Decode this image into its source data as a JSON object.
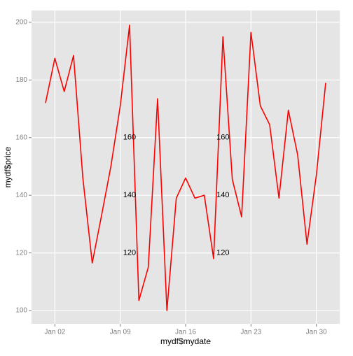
{
  "chart_data": {
    "type": "line",
    "x_label": "mydf$mydate",
    "y_label": "mydf$price",
    "x": [
      "Jan 01",
      "Jan 02",
      "Jan 03",
      "Jan 04",
      "Jan 05",
      "Jan 06",
      "Jan 07",
      "Jan 08",
      "Jan 09",
      "Jan 10",
      "Jan 11",
      "Jan 12",
      "Jan 13",
      "Jan 14",
      "Jan 15",
      "Jan 16",
      "Jan 17",
      "Jan 18",
      "Jan 19",
      "Jan 20",
      "Jan 21",
      "Jan 22",
      "Jan 23",
      "Jan 24",
      "Jan 25",
      "Jan 26",
      "Jan 27",
      "Jan 28",
      "Jan 29",
      "Jan 30",
      "Jan 31"
    ],
    "series": [
      {
        "color": "#ff0000",
        "values": [
          172,
          187.5,
          176,
          188.5,
          146,
          116.5,
          133,
          150,
          171,
          199,
          103.5,
          115,
          173.5,
          100,
          139,
          146,
          139,
          140,
          118,
          195,
          145.5,
          132.5,
          196.5,
          171,
          164.5,
          139,
          169.5,
          154,
          123,
          147,
          179
        ]
      }
    ],
    "xticks": [
      "Jan 02",
      "Jan 09",
      "Jan 16",
      "Jan 23",
      "Jan 30"
    ],
    "ylim": [
      95.4,
      204.1
    ],
    "yticks": [
      100,
      120,
      140,
      160,
      180,
      200
    ],
    "grid": true,
    "annotations": [
      {
        "x": "Jan 10",
        "y": 120
      },
      {
        "x": "Jan 10",
        "y": 140
      },
      {
        "x": "Jan 10",
        "y": 160
      },
      {
        "x": "Jan 20",
        "y": 120
      },
      {
        "x": "Jan 20",
        "y": 140
      },
      {
        "x": "Jan 20",
        "y": 160
      }
    ]
  }
}
